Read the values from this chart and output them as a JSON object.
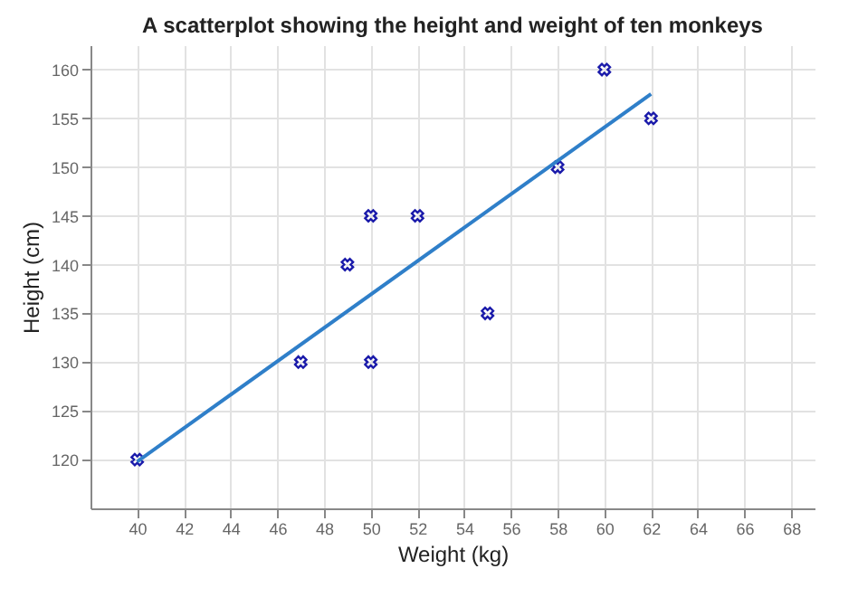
{
  "chart_data": {
    "type": "scatter",
    "title": "A scatterplot showing the height and weight of ten monkeys",
    "xlabel": "Weight (kg)",
    "ylabel": "Height (cm)",
    "series": [
      {
        "type": "scatter",
        "color": "#1a1aaa",
        "marker": "cross",
        "x": [
          40,
          47,
          49,
          50,
          50,
          52,
          55,
          58,
          60,
          62
        ],
        "values": [
          120,
          130,
          140,
          145,
          130,
          145,
          135,
          150,
          160,
          155
        ]
      },
      {
        "type": "line",
        "color": "#2f7fc9",
        "line_style": "solid",
        "x": [
          40,
          62
        ],
        "values": [
          119.8,
          157.5
        ]
      }
    ],
    "xlim": [
      38,
      69
    ],
    "xticks": [
      40,
      42,
      44,
      46,
      48,
      50,
      52,
      54,
      56,
      58,
      60,
      62,
      64,
      66,
      68
    ],
    "ylim": [
      115,
      162.5
    ],
    "yticks": [
      120,
      125,
      130,
      135,
      140,
      145,
      150,
      155,
      160
    ],
    "grid": true
  }
}
